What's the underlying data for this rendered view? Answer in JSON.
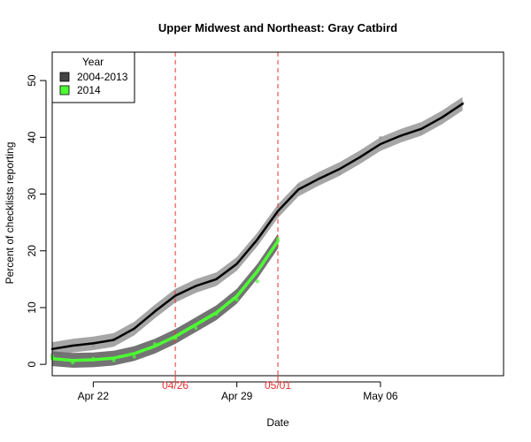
{
  "chart_data": {
    "type": "line",
    "title": "Upper Midwest and Northeast: Gray Catbird",
    "xlabel": "Date",
    "ylabel": "Percent of checklists reporting",
    "x_unit": "day of year",
    "xlim": [
      110,
      132
    ],
    "ylim": [
      -2,
      55
    ],
    "y_ticks": [
      0,
      10,
      20,
      30,
      40,
      50
    ],
    "x_ticks": [
      {
        "x": 112,
        "label": "Apr 22"
      },
      {
        "x": 119,
        "label": "Apr 29"
      },
      {
        "x": 126,
        "label": "May 06"
      }
    ],
    "reference_lines": [
      {
        "x": 116,
        "label": "04/26",
        "color": "#e8312f"
      },
      {
        "x": 121,
        "label": "05/01",
        "color": "#e8312f"
      }
    ],
    "legend": {
      "title": "Year",
      "position": "top-left",
      "entries": [
        {
          "label": "2004-2013",
          "color": "#444444"
        },
        {
          "label": "2014",
          "color": "#4cff33"
        }
      ]
    },
    "series": [
      {
        "name": "2004-2013",
        "line_color": "#000000",
        "band_color": "#a6a6a6",
        "point_color": "#999999",
        "x": [
          110,
          111,
          112,
          113,
          114,
          115,
          116,
          117,
          118,
          119,
          120,
          121,
          122,
          123,
          124,
          125,
          126,
          127,
          128,
          129,
          130
        ],
        "y": [
          2.7,
          3.3,
          3.7,
          4.3,
          6.3,
          9.3,
          12.1,
          13.8,
          15.0,
          17.7,
          22.0,
          27.0,
          30.8,
          32.7,
          34.4,
          36.5,
          38.8,
          40.3,
          41.5,
          43.5,
          45.9
        ],
        "band": 1.2,
        "points": [
          [
            110,
            1.7
          ],
          [
            111,
            3.4
          ],
          [
            112,
            3.3
          ],
          [
            113,
            4.6
          ],
          [
            114,
            6.1
          ],
          [
            115,
            9.6
          ],
          [
            116,
            11.9
          ],
          [
            117,
            13.5
          ],
          [
            118,
            15.1
          ],
          [
            119,
            18.1
          ],
          [
            120,
            21.4
          ],
          [
            121,
            26.8
          ],
          [
            122,
            31.5
          ],
          [
            123,
            33.0
          ],
          [
            124,
            33.6
          ],
          [
            125,
            36.4
          ],
          [
            126,
            39.9
          ],
          [
            127,
            40.2
          ],
          [
            128,
            40.9
          ],
          [
            129,
            43.5
          ],
          [
            130,
            46.0
          ]
        ]
      },
      {
        "name": "2014",
        "line_color": "#4cff33",
        "band_color": "#6b6b6b",
        "point_color": "#4cff33",
        "x": [
          110,
          111,
          112,
          113,
          114,
          115,
          116,
          117,
          118,
          119,
          120,
          121
        ],
        "y": [
          1.0,
          0.7,
          0.8,
          1.1,
          1.9,
          3.2,
          4.9,
          7.0,
          9.1,
          12.0,
          16.4,
          21.7
        ],
        "band": 1.3,
        "points": [
          [
            110,
            1.4
          ],
          [
            111,
            0.3
          ],
          [
            112,
            1.0
          ],
          [
            113,
            0.7
          ],
          [
            114,
            1.3
          ],
          [
            115,
            3.6
          ],
          [
            116,
            4.6
          ],
          [
            117,
            6.4
          ],
          [
            118,
            8.9
          ],
          [
            119,
            11.4
          ],
          [
            120,
            14.6
          ],
          [
            121,
            22.1
          ]
        ]
      }
    ]
  }
}
